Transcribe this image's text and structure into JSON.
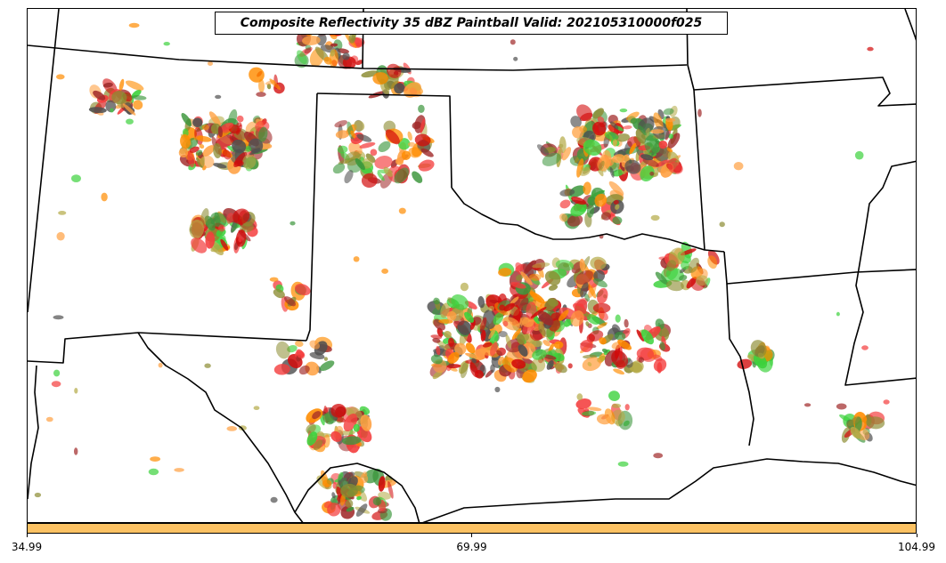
{
  "title": "Composite Reflectivity 35 dBZ Paintball Valid: 202105310000f025",
  "colorbar": {
    "color": "#fcc263",
    "ticks": [
      "34.99",
      "69.99",
      "104.99"
    ],
    "range": [
      34.99,
      104.99
    ]
  },
  "colors": {
    "red": "#f43c3c",
    "dark_red": "#a02828",
    "crimson": "#d20a0a",
    "orange": "#ff8c00",
    "light_orange": "#ffa040",
    "green": "#3cd23c",
    "dark_green": "#3c963c",
    "olive": "#8c8c32",
    "khaki": "#b4aa46",
    "dark_gray": "#505050"
  }
}
